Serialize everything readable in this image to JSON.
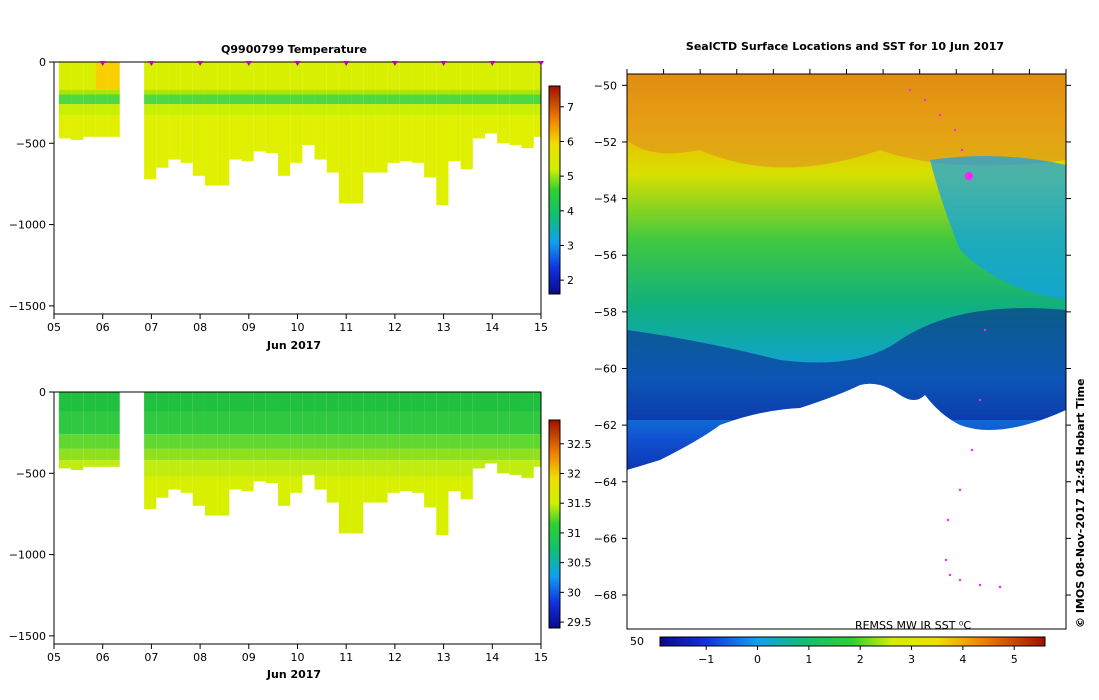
{
  "chart_data": [
    {
      "type": "heatmap",
      "title": "Q9900799  Temperature",
      "xlabel": "Jun 2017",
      "x_ticks": [
        "05",
        "06",
        "07",
        "08",
        "09",
        "10",
        "11",
        "12",
        "13",
        "14",
        "15"
      ],
      "x_range_days": [
        5,
        15
      ],
      "y_ticks": [
        0,
        -500,
        -1000,
        -1500
      ],
      "ylim": [
        -1550,
        0
      ],
      "colorbar": {
        "ticks": [
          2,
          3,
          4,
          5,
          6,
          7
        ],
        "range": [
          1.6,
          7.6
        ]
      },
      "profile_marker_days": [
        6,
        7,
        8,
        9,
        10,
        11,
        12,
        13,
        14,
        15
      ],
      "gap_days": [
        6.35,
        6.85
      ],
      "profiles": [
        {
          "day": 5.1,
          "depth": 470
        },
        {
          "day": 5.35,
          "depth": 480
        },
        {
          "day": 5.6,
          "depth": 460
        },
        {
          "day": 5.85,
          "depth": 460
        },
        {
          "day": 6.1,
          "depth": 460
        },
        {
          "day": 6.35,
          "depth": 460
        },
        {
          "day": 6.85,
          "depth": 720
        },
        {
          "day": 7.1,
          "depth": 650
        },
        {
          "day": 7.35,
          "depth": 600
        },
        {
          "day": 7.6,
          "depth": 620
        },
        {
          "day": 7.85,
          "depth": 700
        },
        {
          "day": 8.1,
          "depth": 760
        },
        {
          "day": 8.35,
          "depth": 760
        },
        {
          "day": 8.6,
          "depth": 600
        },
        {
          "day": 8.85,
          "depth": 610
        },
        {
          "day": 9.1,
          "depth": 550
        },
        {
          "day": 9.35,
          "depth": 560
        },
        {
          "day": 9.6,
          "depth": 700
        },
        {
          "day": 9.85,
          "depth": 620
        },
        {
          "day": 10.1,
          "depth": 510
        },
        {
          "day": 10.35,
          "depth": 600
        },
        {
          "day": 10.6,
          "depth": 680
        },
        {
          "day": 10.85,
          "depth": 870
        },
        {
          "day": 11.1,
          "depth": 870
        },
        {
          "day": 11.35,
          "depth": 680
        },
        {
          "day": 11.6,
          "depth": 680
        },
        {
          "day": 11.85,
          "depth": 620
        },
        {
          "day": 12.1,
          "depth": 610
        },
        {
          "day": 12.35,
          "depth": 620
        },
        {
          "day": 12.6,
          "depth": 710
        },
        {
          "day": 12.85,
          "depth": 880
        },
        {
          "day": 13.1,
          "depth": 610
        },
        {
          "day": 13.35,
          "depth": 660
        },
        {
          "day": 13.6,
          "depth": 470
        },
        {
          "day": 13.85,
          "depth": 440
        },
        {
          "day": 14.1,
          "depth": 500
        },
        {
          "day": 14.35,
          "depth": 510
        },
        {
          "day": 14.6,
          "depth": 530
        },
        {
          "day": 14.85,
          "depth": 460
        }
      ]
    },
    {
      "type": "heatmap",
      "title": "",
      "xlabel": "Jun 2017",
      "x_ticks": [
        "05",
        "06",
        "07",
        "08",
        "09",
        "10",
        "11",
        "12",
        "13",
        "14",
        "15"
      ],
      "x_range_days": [
        5,
        15
      ],
      "y_ticks": [
        0,
        -500,
        -1000,
        -1500
      ],
      "ylim": [
        -1550,
        0
      ],
      "colorbar": {
        "ticks": [
          29.5,
          30,
          30.5,
          31,
          31.5,
          32,
          32.5
        ],
        "range": [
          29.4,
          32.9
        ]
      }
    },
    {
      "type": "heatmap",
      "title": "SealCTD Surface Locations and SST for 10 Jun 2017",
      "y_ticks": [
        -50,
        -52,
        -54,
        -56,
        -58,
        -60,
        -62,
        -64,
        -66,
        -68
      ],
      "ylim": [
        -69.2,
        -49.6
      ],
      "colorbar": {
        "label": "REMSS MW IR SST ⁰C",
        "ticks": [
          -1,
          0,
          1,
          2,
          3,
          4,
          5
        ],
        "range": [
          -1.9,
          5.6
        ]
      },
      "corner_label": "50",
      "side_label": "© IMOS 08-Nov-2017 12:45 Hobart Time"
    }
  ]
}
